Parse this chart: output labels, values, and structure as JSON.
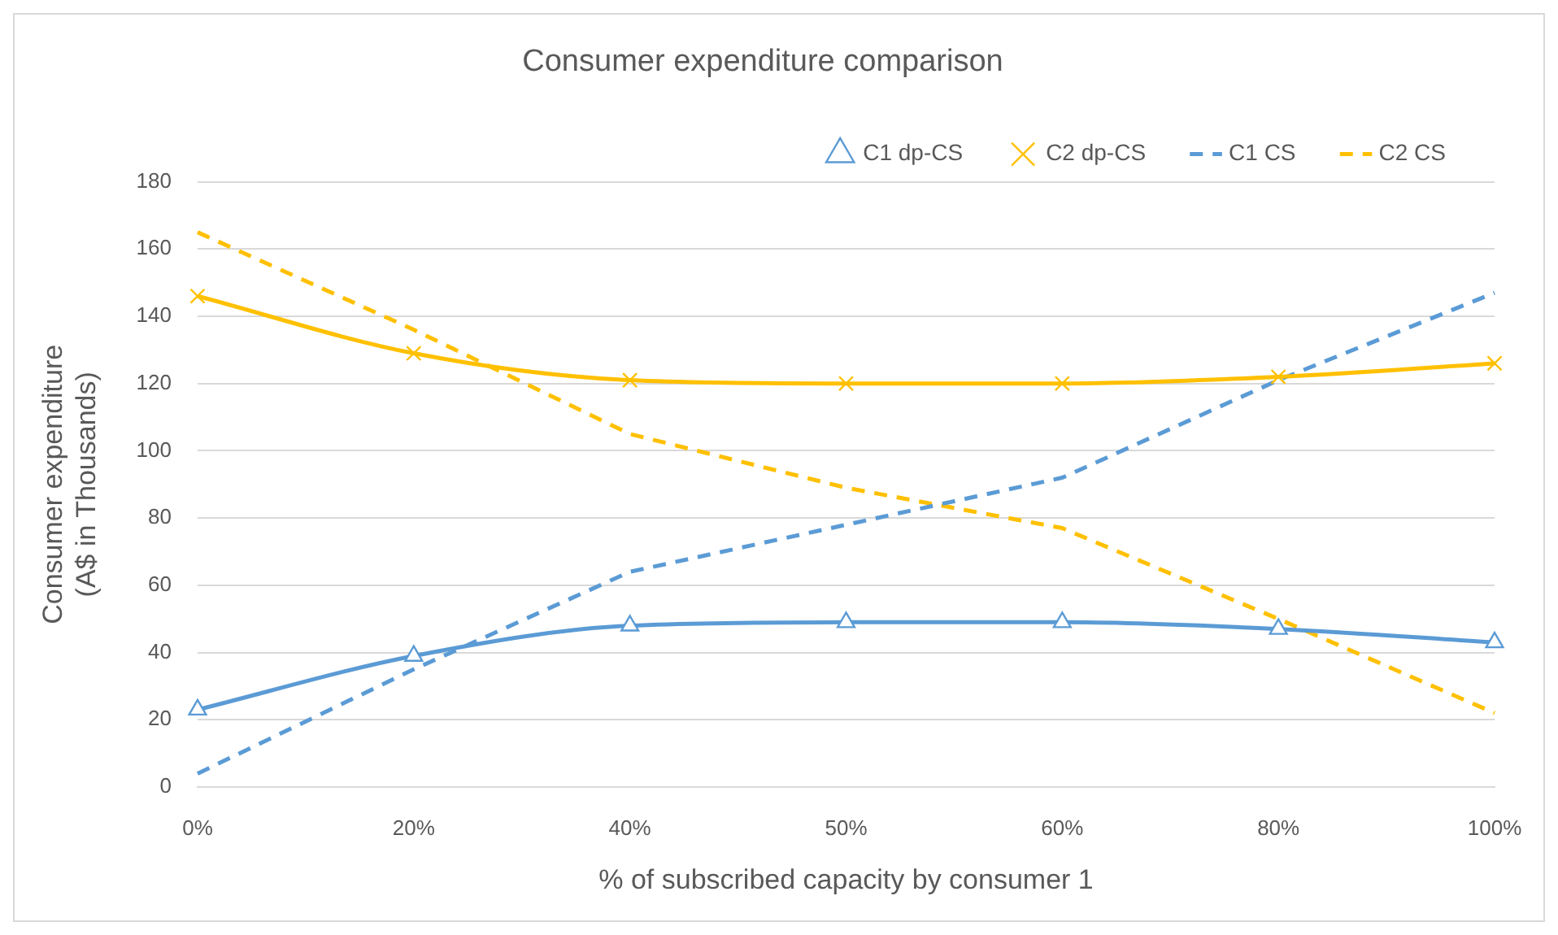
{
  "chart_data": {
    "type": "line",
    "title": "Consumer expenditure comparison",
    "xlabel": "% of subscribed capacity by consumer 1",
    "ylabel": "Consumer expenditure (A$ in Thousands)",
    "categories": [
      "0%",
      "20%",
      "40%",
      "50%",
      "60%",
      "80%",
      "100%"
    ],
    "series": [
      {
        "name": "C1 dp-CS",
        "color": "#5b9bd5",
        "marker": "triangle",
        "line_style": "solid",
        "values": [
          23,
          39,
          48,
          49,
          49,
          47,
          43
        ]
      },
      {
        "name": "C2 dp-CS",
        "color": "#ffc000",
        "marker": "cross",
        "line_style": "solid",
        "values": [
          146,
          129,
          121,
          120,
          120,
          122,
          126
        ]
      },
      {
        "name": "C1 CS",
        "color": "#5b9bd5",
        "marker": "none",
        "line_style": "dashed",
        "values": [
          4,
          35,
          64,
          78,
          92,
          121,
          147
        ]
      },
      {
        "name": "C2 CS",
        "color": "#ffc000",
        "marker": "none",
        "line_style": "dashed",
        "values": [
          165,
          136,
          105,
          89,
          77,
          50,
          22
        ]
      }
    ],
    "ylim": [
      0,
      180
    ],
    "yticks": [
      0,
      20,
      40,
      60,
      80,
      100,
      120,
      140,
      160,
      180
    ],
    "grid": "y",
    "legend": "top"
  }
}
